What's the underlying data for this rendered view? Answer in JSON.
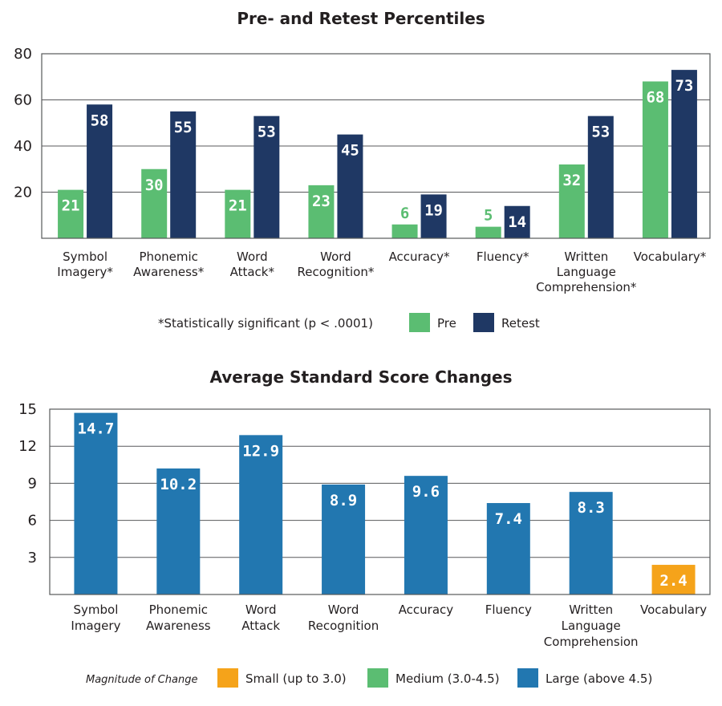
{
  "chart_data": [
    {
      "type": "bar",
      "title": "Pre- and Retest Percentiles",
      "categories": [
        [
          "Symbol",
          "Imagery*"
        ],
        [
          "Phonemic",
          "Awareness*"
        ],
        [
          "Word",
          "Attack*"
        ],
        [
          "Word",
          "Recognition*"
        ],
        [
          "Accuracy*"
        ],
        [
          "Fluency*"
        ],
        [
          "Written",
          "Language",
          "Comprehension*"
        ],
        [
          "Vocabulary*"
        ]
      ],
      "series": [
        {
          "name": "Pre",
          "color": "#5bbd72",
          "values": [
            21,
            30,
            21,
            23,
            6,
            5,
            32,
            68
          ]
        },
        {
          "name": "Retest",
          "color": "#1f3864",
          "values": [
            58,
            55,
            53,
            45,
            19,
            14,
            53,
            73
          ]
        }
      ],
      "yticks": [
        20,
        40,
        60,
        80
      ],
      "ylim": [
        0,
        80
      ],
      "footnote": "*Statistically significant (p < .0001)",
      "legend": [
        "Pre",
        "Retest"
      ]
    },
    {
      "type": "bar",
      "title": "Average Standard Score Changes",
      "categories": [
        [
          "Symbol",
          "Imagery"
        ],
        [
          "Phonemic",
          "Awareness"
        ],
        [
          "Word",
          "Attack"
        ],
        [
          "Word",
          "Recognition"
        ],
        [
          "Accuracy"
        ],
        [
          "Fluency"
        ],
        [
          "Written",
          "Language",
          "Comprehension"
        ],
        [
          "Vocabulary"
        ]
      ],
      "values": [
        14.7,
        10.2,
        12.9,
        8.9,
        9.6,
        7.4,
        8.3,
        2.4
      ],
      "magnitude": [
        "Large",
        "Large",
        "Large",
        "Large",
        "Large",
        "Large",
        "Large",
        "Small"
      ],
      "yticks": [
        3,
        6,
        9,
        12,
        15
      ],
      "ylim": [
        0,
        15
      ],
      "legend_title": "Magnitude of Change",
      "legend": [
        {
          "key": "Small",
          "label": "Small (up to 3.0)",
          "color": "#f5a31a"
        },
        {
          "key": "Medium",
          "label": "Medium (3.0-4.5)",
          "color": "#5bbd72"
        },
        {
          "key": "Large",
          "label": "Large (above 4.5)",
          "color": "#2277b0"
        }
      ]
    }
  ]
}
